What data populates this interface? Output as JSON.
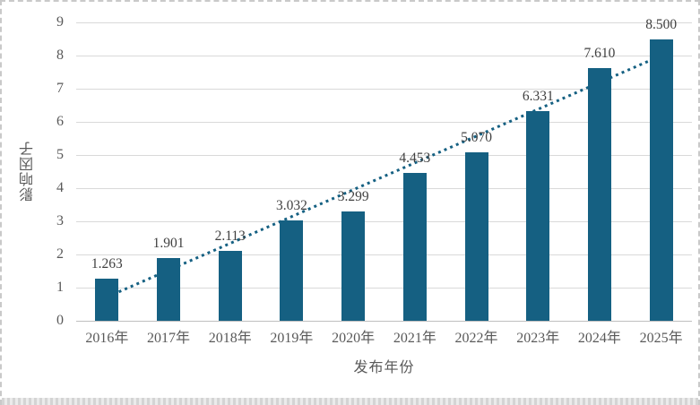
{
  "chart_data": {
    "type": "bar",
    "title": "",
    "categories": [
      "2016年",
      "2017年",
      "2018年",
      "2019年",
      "2020年",
      "2021年",
      "2022年",
      "2023年",
      "2024年",
      "2025年"
    ],
    "values": [
      1.263,
      1.901,
      2.113,
      3.032,
      3.299,
      4.453,
      5.07,
      6.331,
      7.61,
      8.5
    ],
    "value_labels": [
      "1.263",
      "1.901",
      "2.113",
      "3.032",
      "3.299",
      "4.453",
      "5.070",
      "6.331",
      "7.610",
      "8.500"
    ],
    "xlabel": "发布年份",
    "ylabel": "影响因子",
    "ylim": [
      0,
      9
    ],
    "ytick_step": 1,
    "grid": true,
    "legend": "none",
    "trendline": {
      "type": "linear",
      "style": "dotted"
    },
    "colors": {
      "bar": "#156082",
      "trendline": "#156082",
      "gridline": "#d9d9d9",
      "axis_line": "#bfbfbf",
      "tick_text": "#595959",
      "data_label_text": "#404040"
    }
  }
}
